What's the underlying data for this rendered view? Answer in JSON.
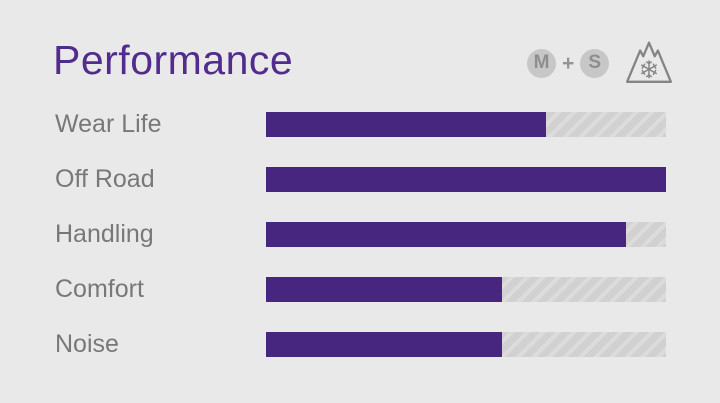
{
  "title": "Performance",
  "colors": {
    "background": "#e9e9e9",
    "title_purple": "#522c8c",
    "bar_purple": "#46267e",
    "label_gray": "#787878",
    "track_gray": "#d1d1d1",
    "track_stripe": "#dcdcdc",
    "badge_circle": "#c7c7c7",
    "badge_letter": "#8e8e8e",
    "snow_icon_stroke": "#848484"
  },
  "header_badges": {
    "ms_badge": {
      "m_label": "M",
      "plus": "+",
      "s_label": "S"
    },
    "snow_icon_name": "three-peak-mountain-snowflake-icon"
  },
  "chart_data": {
    "type": "bar",
    "orientation": "horizontal",
    "title": "Performance",
    "categories": [
      "Wear Life",
      "Off Road",
      "Handling",
      "Comfort",
      "Noise"
    ],
    "values_percent": [
      70,
      100,
      90,
      59,
      59
    ],
    "value_range": [
      0,
      100
    ],
    "xlabel": "",
    "ylabel": "",
    "grid": false,
    "legend": "none",
    "track_style": "diagonal-hatch"
  }
}
